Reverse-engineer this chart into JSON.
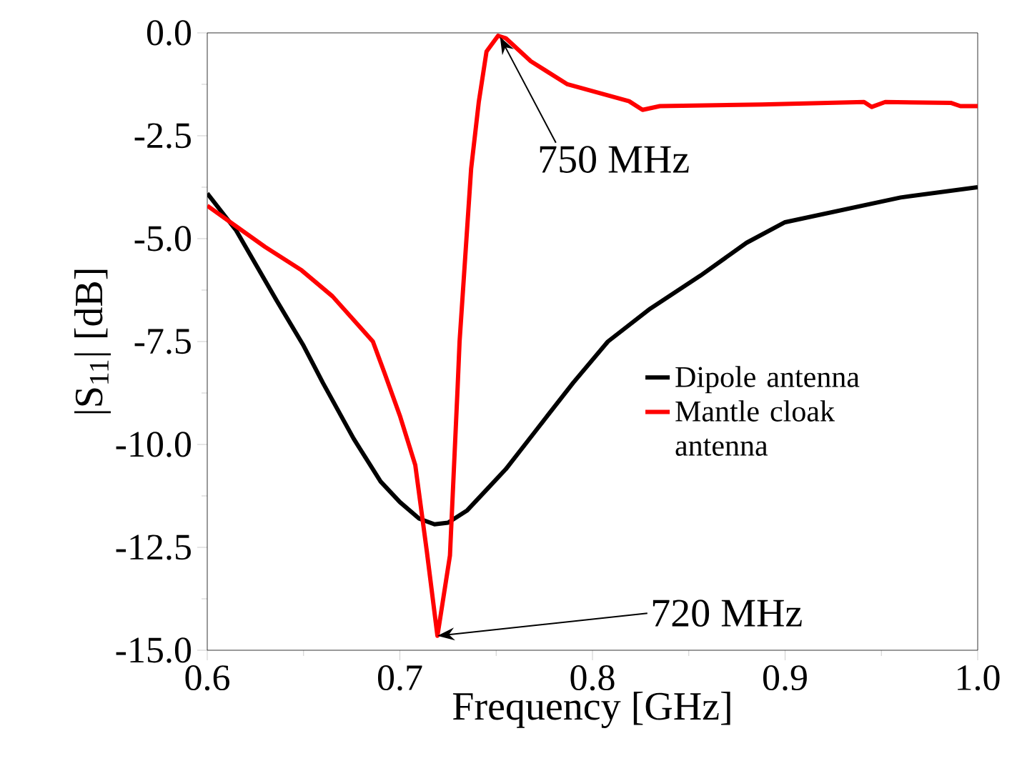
{
  "chart_data": {
    "type": "line",
    "xlabel": "Frequency [GHz]",
    "ylabel": "|S$_{11}$| [dB]",
    "xlim": [
      0.6,
      1.0
    ],
    "ylim": [
      -15.0,
      0.0
    ],
    "xticks": [
      {
        "value": 0.6,
        "label": "0.6"
      },
      {
        "value": 0.7,
        "label": "0.7"
      },
      {
        "value": 0.8,
        "label": "0.8"
      },
      {
        "value": 0.9,
        "label": "0.9"
      },
      {
        "value": 1.0,
        "label": "1.0"
      }
    ],
    "yticks": [
      {
        "value": -15,
        "label": "-15.0"
      },
      {
        "value": -12.5,
        "label": "-12.5"
      },
      {
        "value": -10,
        "label": "-10.0"
      },
      {
        "value": -7.5,
        "label": "-7.5"
      },
      {
        "value": -5,
        "label": "-5.0"
      },
      {
        "value": -2.5,
        "label": "-2.5"
      },
      {
        "value": 0,
        "label": "0.0"
      }
    ],
    "grid": false,
    "legend": "right",
    "marker": "none",
    "line_style": "solid",
    "series": [
      {
        "name": "Dipole antenna",
        "color": "#000000",
        "x": [
          0.6,
          0.615,
          0.636,
          0.65,
          0.66,
          0.676,
          0.69,
          0.7,
          0.71,
          0.718,
          0.725,
          0.735,
          0.745,
          0.755,
          0.77,
          0.79,
          0.808,
          0.83,
          0.856,
          0.88,
          0.9,
          0.93,
          0.96,
          1.0
        ],
        "values": [
          -3.9,
          -4.8,
          -6.5,
          -7.6,
          -8.5,
          -9.86,
          -10.9,
          -11.4,
          -11.8,
          -11.94,
          -11.9,
          -11.6,
          -11.1,
          -10.6,
          -9.7,
          -8.5,
          -7.5,
          -6.7,
          -5.9,
          -5.1,
          -4.6,
          -4.3,
          -4.0,
          -3.75
        ]
      },
      {
        "name": "Mantle cloak antenna",
        "color": "#ff0000",
        "x": [
          0.6,
          0.615,
          0.63,
          0.649,
          0.665,
          0.686,
          0.692,
          0.7,
          0.708,
          0.714,
          0.7195,
          0.726,
          0.73,
          0.731,
          0.737,
          0.741,
          0.745,
          0.751,
          0.755,
          0.768,
          0.787,
          0.819,
          0.826,
          0.835,
          0.888,
          0.941,
          0.945,
          0.952,
          0.986,
          0.991,
          1.0
        ],
        "values": [
          -4.2,
          -4.7,
          -5.2,
          -5.77,
          -6.4,
          -7.5,
          -8.26,
          -9.3,
          -10.5,
          -12.6,
          -14.65,
          -12.7,
          -8.6,
          -7.5,
          -3.3,
          -1.67,
          -0.45,
          -0.07,
          -0.13,
          -0.69,
          -1.25,
          -1.66,
          -1.87,
          -1.78,
          -1.74,
          -1.68,
          -1.8,
          -1.68,
          -1.7,
          -1.78,
          -1.78
        ]
      }
    ],
    "annotations": [
      {
        "text": "750 MHz",
        "x": 0.752,
        "y": -0.1
      },
      {
        "text": "720 MHz",
        "x": 0.7195,
        "y": -14.65
      }
    ]
  }
}
